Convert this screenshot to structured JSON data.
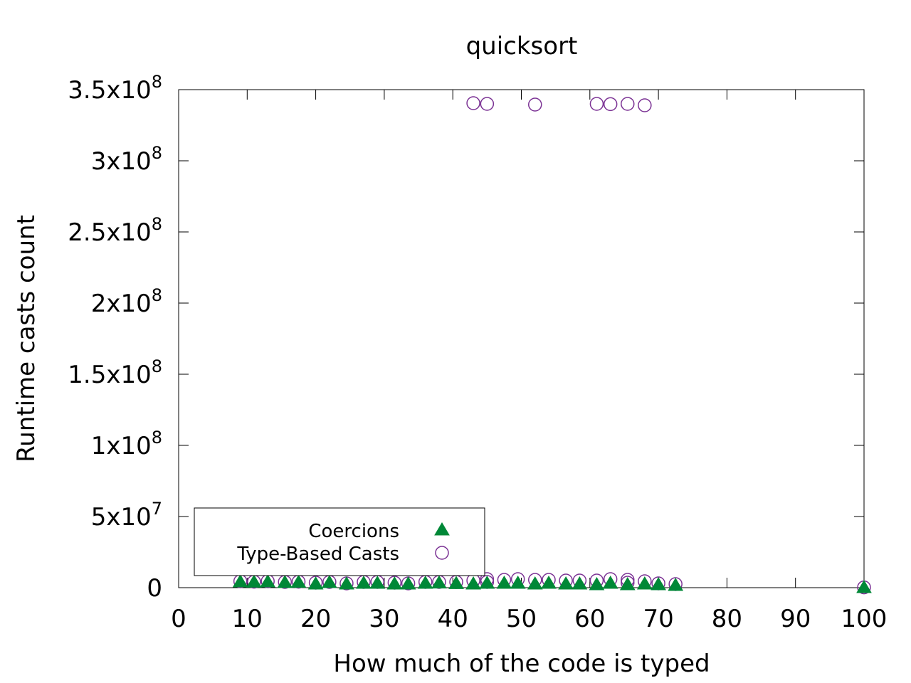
{
  "chart_data": {
    "type": "scatter",
    "title": "quicksort",
    "xlabel": "How much of the code is typed",
    "ylabel": "Runtime casts count",
    "xlim": [
      0,
      100
    ],
    "ylim": [
      0,
      350000000
    ],
    "xticks": [
      0,
      10,
      20,
      30,
      40,
      50,
      60,
      70,
      80,
      90,
      100
    ],
    "xtick_labels": [
      "0",
      "10",
      "20",
      "30",
      "40",
      "50",
      "60",
      "70",
      "80",
      "90",
      "100"
    ],
    "yticks": [
      {
        "value": 0,
        "mantissa": "0",
        "exp": ""
      },
      {
        "value": 50000000,
        "mantissa": "5x10",
        "exp": "7"
      },
      {
        "value": 100000000,
        "mantissa": "1x10",
        "exp": "8"
      },
      {
        "value": 150000000,
        "mantissa": "1.5x10",
        "exp": "8"
      },
      {
        "value": 200000000,
        "mantissa": "2x10",
        "exp": "8"
      },
      {
        "value": 250000000,
        "mantissa": "2.5x10",
        "exp": "8"
      },
      {
        "value": 300000000,
        "mantissa": "3x10",
        "exp": "8"
      },
      {
        "value": 350000000,
        "mantissa": "3.5x10",
        "exp": "8"
      }
    ],
    "grid": false,
    "legend_position": "bottom-left",
    "series": [
      {
        "name": "Coercions",
        "marker": "filled-triangle",
        "color": "#008837",
        "points": [
          [
            9,
            4000000
          ],
          [
            11,
            3800000
          ],
          [
            13,
            4000000
          ],
          [
            15.5,
            3500000
          ],
          [
            17.5,
            3700000
          ],
          [
            20,
            2500000
          ],
          [
            22,
            3500000
          ],
          [
            24.5,
            2500000
          ],
          [
            27,
            3000000
          ],
          [
            29,
            3000000
          ],
          [
            31.5,
            2500000
          ],
          [
            33.5,
            2500000
          ],
          [
            36,
            3000000
          ],
          [
            38,
            3200000
          ],
          [
            40.5,
            2800000
          ],
          [
            43,
            2500000
          ],
          [
            45,
            3000000
          ],
          [
            47.5,
            3000000
          ],
          [
            49.5,
            3000000
          ],
          [
            52,
            2500000
          ],
          [
            54,
            3000000
          ],
          [
            56.5,
            2500000
          ],
          [
            58.5,
            2500000
          ],
          [
            61,
            2000000
          ],
          [
            63,
            3000000
          ],
          [
            65.5,
            2000000
          ],
          [
            68,
            2500000
          ],
          [
            70,
            2000000
          ],
          [
            72.5,
            1500000
          ],
          [
            100,
            0
          ]
        ]
      },
      {
        "name": "Type-Based Casts",
        "marker": "open-circle",
        "color": "#7b3294",
        "points": [
          [
            9,
            4500000
          ],
          [
            11,
            4200000
          ],
          [
            13,
            4500000
          ],
          [
            15.5,
            4000000
          ],
          [
            17.5,
            4200000
          ],
          [
            20,
            3500000
          ],
          [
            22,
            4000000
          ],
          [
            24.5,
            3000000
          ],
          [
            27,
            4000000
          ],
          [
            29,
            4000000
          ],
          [
            31.5,
            3500000
          ],
          [
            33.5,
            3000000
          ],
          [
            36,
            4000000
          ],
          [
            38,
            4000000
          ],
          [
            40.5,
            4000000
          ],
          [
            43,
            5000000
          ],
          [
            45,
            6000000
          ],
          [
            45,
            4000000
          ],
          [
            47.5,
            5500000
          ],
          [
            49.5,
            6000000
          ],
          [
            52,
            5500000
          ],
          [
            54,
            5500000
          ],
          [
            56.5,
            5000000
          ],
          [
            58.5,
            5000000
          ],
          [
            61,
            5000000
          ],
          [
            63,
            6000000
          ],
          [
            65.5,
            5500000
          ],
          [
            65.5,
            3500000
          ],
          [
            68,
            4500000
          ],
          [
            70,
            3000000
          ],
          [
            72.5,
            2500000
          ],
          [
            100,
            200000
          ],
          [
            43,
            340500000
          ],
          [
            45,
            340000000
          ],
          [
            52,
            339500000
          ],
          [
            61,
            340000000
          ],
          [
            63,
            339800000
          ],
          [
            65.5,
            340000000
          ],
          [
            68,
            339000000
          ]
        ]
      }
    ]
  }
}
